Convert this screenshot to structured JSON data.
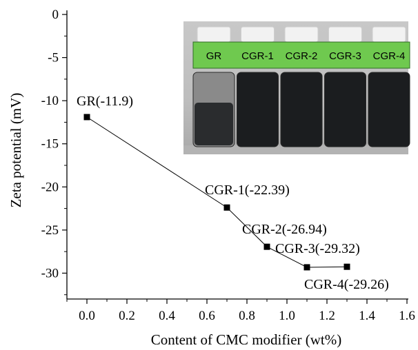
{
  "chart_data": {
    "type": "line",
    "title": "",
    "xlabel": "Content of CMC modifier (wt%)",
    "ylabel": "Zeta potential (mV)",
    "xlim": [
      -0.1,
      1.6
    ],
    "ylim": [
      -33,
      0
    ],
    "xticks": [
      "0.0",
      "0.2",
      "0.4",
      "0.6",
      "0.8",
      "1.0",
      "1.2",
      "1.4",
      "1.6"
    ],
    "xtick_values": [
      0.0,
      0.2,
      0.4,
      0.6,
      0.8,
      1.0,
      1.2,
      1.4,
      1.6
    ],
    "yticks": [
      "0",
      "-5",
      "-10",
      "-15",
      "-20",
      "-25",
      "-30"
    ],
    "ytick_values": [
      0,
      -5,
      -10,
      -15,
      -20,
      -25,
      -30
    ],
    "grid": false,
    "series": [
      {
        "marker": "square",
        "color": "#000000",
        "x": [
          0.0,
          0.7,
          0.9,
          1.1,
          1.3
        ],
        "y": [
          -11.9,
          -22.39,
          -26.94,
          -29.32,
          -29.26
        ]
      }
    ],
    "annotations": [
      {
        "text": "GR(-11.9)",
        "x": 0.0,
        "y": -11.9
      },
      {
        "text": "CGR-1(-22.39)",
        "x": 0.7,
        "y": -22.39
      },
      {
        "text": "CGR-2(-26.94)",
        "x": 0.9,
        "y": -26.94
      },
      {
        "text": "CGR-3(-29.32)",
        "x": 1.1,
        "y": -29.32
      },
      {
        "text": "CGR-4(-29.26)",
        "x": 1.3,
        "y": -29.26
      }
    ],
    "inset_photo": {
      "labels": [
        "GR",
        "CGR-1",
        "CGR-2",
        "CGR-3",
        "CGR-4"
      ],
      "label_bg": "#6fc94f"
    }
  }
}
